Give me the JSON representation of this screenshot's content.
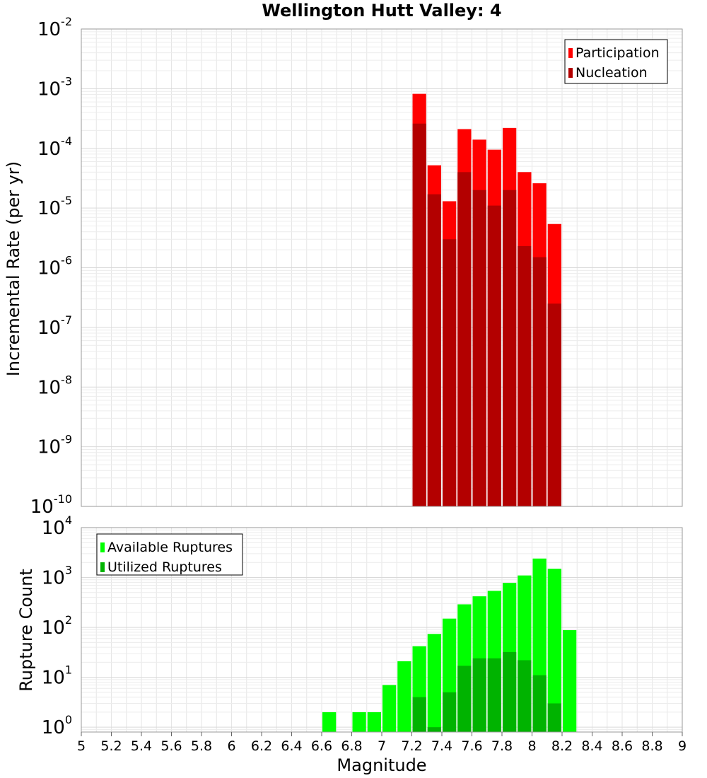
{
  "chart_data": [
    {
      "type": "bar",
      "title": "Wellington Hutt Valley: 4",
      "xlabel": "",
      "ylabel": "Incremental Rate (per yr)",
      "yscale": "log",
      "xlim": [
        5,
        9
      ],
      "ylim": [
        1e-10,
        0.01
      ],
      "grid": true,
      "legend_position": "top-right",
      "bar_width": 0.1,
      "series": [
        {
          "name": "Participation",
          "color": "#ff0000",
          "x": [
            7.25,
            7.35,
            7.45,
            7.55,
            7.65,
            7.75,
            7.85,
            7.95,
            8.05,
            8.15
          ],
          "values": [
            0.00082,
            5.2e-05,
            1.3e-05,
            0.00021,
            0.00014,
            9.5e-05,
            0.00022,
            4e-05,
            2.6e-05,
            5.4e-06
          ]
        },
        {
          "name": "Nucleation",
          "color": "#b30000",
          "x": [
            7.25,
            7.35,
            7.45,
            7.55,
            7.65,
            7.75,
            7.85,
            7.95,
            8.05,
            8.15
          ],
          "values": [
            0.00026,
            1.7e-05,
            3e-06,
            4e-05,
            2e-05,
            1.1e-05,
            2e-05,
            2.3e-06,
            1.5e-06,
            2.5e-07
          ]
        }
      ]
    },
    {
      "type": "bar",
      "title": "",
      "xlabel": "Magnitude",
      "ylabel": "Rupture Count",
      "yscale": "log",
      "xlim": [
        5,
        9
      ],
      "ylim": [
        0.8,
        10000
      ],
      "grid": true,
      "legend_position": "top-left",
      "bar_width": 0.1,
      "series": [
        {
          "name": "Available Ruptures",
          "color": "#00ff00",
          "x": [
            6.65,
            6.85,
            6.95,
            7.05,
            7.15,
            7.25,
            7.35,
            7.45,
            7.55,
            7.65,
            7.75,
            7.85,
            7.95,
            8.05,
            8.15,
            8.25
          ],
          "values": [
            2,
            2,
            2,
            7,
            21,
            42,
            74,
            150,
            290,
            420,
            540,
            780,
            1100,
            2400,
            1500,
            88
          ]
        },
        {
          "name": "Utilized Ruptures",
          "color": "#00b300",
          "x": [
            7.25,
            7.35,
            7.45,
            7.55,
            7.65,
            7.75,
            7.85,
            7.95,
            8.05,
            8.15
          ],
          "values": [
            4,
            1,
            5,
            17,
            24,
            24,
            32,
            22,
            11,
            3
          ]
        }
      ]
    }
  ],
  "x_ticks": [
    "5",
    "5.2",
    "5.4",
    "5.6",
    "5.8",
    "6",
    "6.2",
    "6.4",
    "6.6",
    "6.8",
    "7",
    "7.2",
    "7.4",
    "7.6",
    "7.8",
    "8",
    "8.2",
    "8.4",
    "8.6",
    "8.8",
    "9"
  ],
  "top_y_ticks": [
    {
      "base": "10",
      "exp": "-10",
      "value": 1e-10
    },
    {
      "base": "10",
      "exp": "-9",
      "value": 1e-09
    },
    {
      "base": "10",
      "exp": "-8",
      "value": 1e-08
    },
    {
      "base": "10",
      "exp": "-7",
      "value": 1e-07
    },
    {
      "base": "10",
      "exp": "-6",
      "value": 1e-06
    },
    {
      "base": "10",
      "exp": "-5",
      "value": 1e-05
    },
    {
      "base": "10",
      "exp": "-4",
      "value": 0.0001
    },
    {
      "base": "10",
      "exp": "-3",
      "value": 0.001
    },
    {
      "base": "10",
      "exp": "-2",
      "value": 0.01
    }
  ],
  "bottom_y_ticks": [
    {
      "base": "10",
      "exp": "0",
      "value": 1
    },
    {
      "base": "10",
      "exp": "1",
      "value": 10
    },
    {
      "base": "10",
      "exp": "2",
      "value": 100
    },
    {
      "base": "10",
      "exp": "3",
      "value": 1000
    },
    {
      "base": "10",
      "exp": "4",
      "value": 10000
    }
  ]
}
